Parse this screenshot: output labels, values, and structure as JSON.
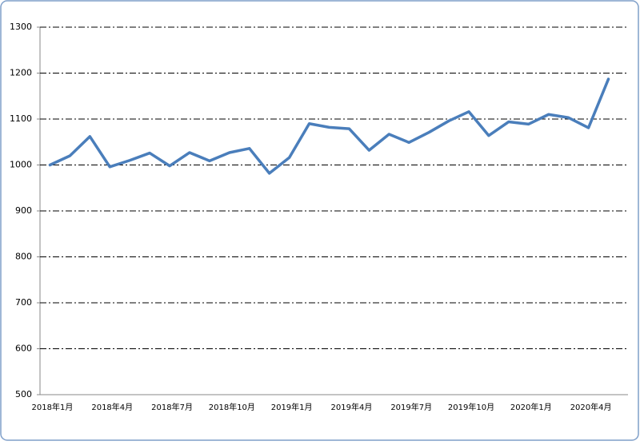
{
  "chart_data": {
    "type": "line",
    "categories": [
      "2018年1月",
      null,
      null,
      "2018年4月",
      null,
      null,
      "2018年7月",
      null,
      null,
      "2018年10月",
      null,
      null,
      "2019年1月",
      null,
      null,
      "2019年4月",
      null,
      null,
      "2019年7月",
      null,
      null,
      "2019年10月",
      null,
      null,
      "2020年1月",
      null,
      null,
      "2020年4月",
      null
    ],
    "values": [
      1000,
      1020,
      1062,
      996,
      1010,
      1026,
      998,
      1027,
      1009,
      1027,
      1036,
      982,
      1016,
      1090,
      1082,
      1079,
      1032,
      1067,
      1049,
      1071,
      1096,
      1116,
      1064,
      1094,
      1089,
      1110,
      1103,
      1081,
      1187
    ],
    "color": "#4a7ebb",
    "ylim": [
      500,
      1300
    ],
    "yticks": [
      500,
      600,
      700,
      800,
      900,
      1000,
      1100,
      1200,
      1300
    ],
    "grid": true
  }
}
